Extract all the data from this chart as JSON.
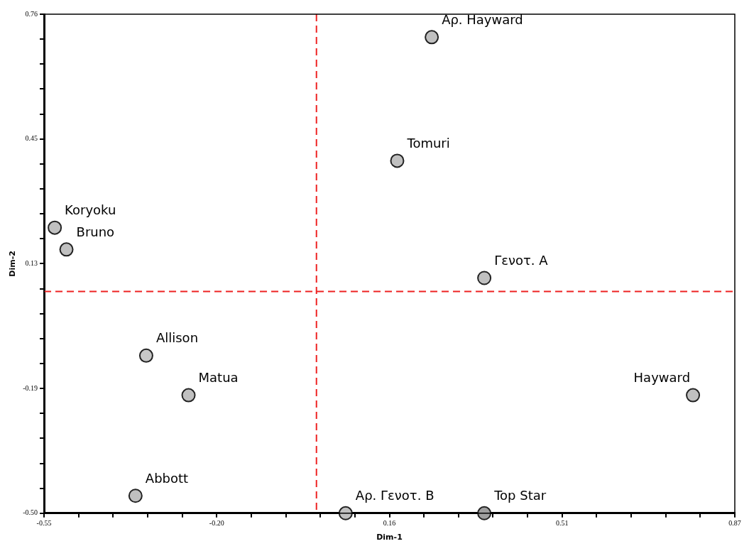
{
  "chart_data": {
    "type": "scatter",
    "xlabel": "Dim-1",
    "ylabel": "Dim-2",
    "x": [
      0.247,
      0.176,
      -0.528,
      -0.504,
      0.355,
      -0.34,
      -0.253,
      0.784,
      -0.362,
      0.07,
      0.355
    ],
    "values": [
      0.702,
      0.39,
      0.221,
      0.166,
      0.094,
      -0.102,
      -0.202,
      -0.202,
      -0.456,
      -0.5,
      -0.5
    ],
    "colors": [
      "#c0c0c0",
      "#c0c0c0",
      "#c0c0c0",
      "#c0c0c0",
      "#c0c0c0",
      "#c8c8c8",
      "#c0c0c0",
      "#c0c0c0",
      "#c0c0c0",
      "#c0c0c0",
      "#a0a0a0"
    ],
    "marker": "circle",
    "grid": false,
    "legend": false,
    "xlim": [
      -0.55,
      0.87
    ],
    "ylim": [
      -0.5,
      0.76
    ],
    "xticks": [
      {
        "value": -0.55,
        "label": "-0.55"
      },
      {
        "value": -0.479,
        "label": null
      },
      {
        "value": -0.408,
        "label": null
      },
      {
        "value": -0.337,
        "label": null
      },
      {
        "value": -0.266,
        "label": null
      },
      {
        "value": -0.195,
        "label": "-0.20"
      },
      {
        "value": -0.124,
        "label": null
      },
      {
        "value": -0.053,
        "label": null
      },
      {
        "value": 0.018,
        "label": null
      },
      {
        "value": 0.089,
        "label": null
      },
      {
        "value": 0.16,
        "label": "0.16"
      },
      {
        "value": 0.231,
        "label": null
      },
      {
        "value": 0.302,
        "label": null
      },
      {
        "value": 0.373,
        "label": null
      },
      {
        "value": 0.444,
        "label": null
      },
      {
        "value": 0.515,
        "label": "0.51"
      },
      {
        "value": 0.586,
        "label": null
      },
      {
        "value": 0.657,
        "label": null
      },
      {
        "value": 0.728,
        "label": null
      },
      {
        "value": 0.799,
        "label": null
      },
      {
        "value": 0.87,
        "label": "0.87"
      }
    ],
    "yticks": [
      {
        "value": -0.5,
        "label": "-0.50"
      },
      {
        "value": -0.437,
        "label": null
      },
      {
        "value": -0.374,
        "label": null
      },
      {
        "value": -0.311,
        "label": null
      },
      {
        "value": -0.248,
        "label": null
      },
      {
        "value": -0.185,
        "label": "-0.19"
      },
      {
        "value": -0.122,
        "label": null
      },
      {
        "value": -0.059,
        "label": null
      },
      {
        "value": 0.004,
        "label": null
      },
      {
        "value": 0.067,
        "label": null
      },
      {
        "value": 0.13,
        "label": "0.13"
      },
      {
        "value": 0.193,
        "label": null
      },
      {
        "value": 0.256,
        "label": null
      },
      {
        "value": 0.319,
        "label": null
      },
      {
        "value": 0.382,
        "label": null
      },
      {
        "value": 0.445,
        "label": "0.45"
      },
      {
        "value": 0.508,
        "label": null
      },
      {
        "value": 0.571,
        "label": null
      },
      {
        "value": 0.634,
        "label": null
      },
      {
        "value": 0.697,
        "label": null
      },
      {
        "value": 0.76,
        "label": "0.76"
      }
    ],
    "ref_lines": [
      {
        "axis": "x",
        "value": 0.01,
        "color": "#ee2222",
        "line_style": "dashed"
      },
      {
        "axis": "y",
        "value": 0.06,
        "color": "#ee2222",
        "line_style": "dashed"
      }
    ],
    "annotations": [
      {
        "text": "Αρ. Hayward",
        "x": 0.247,
        "y": 0.702
      },
      {
        "text": "Tomuri",
        "x": 0.176,
        "y": 0.39
      },
      {
        "text": "Koryoku",
        "x": -0.528,
        "y": 0.221
      },
      {
        "text": "Bruno",
        "x": -0.504,
        "y": 0.166
      },
      {
        "text": "Γενοτ. Α",
        "x": 0.355,
        "y": 0.094
      },
      {
        "text": "Allison",
        "x": -0.34,
        "y": -0.102
      },
      {
        "text": "Matua",
        "x": -0.253,
        "y": -0.202
      },
      {
        "text": "Hayward",
        "x": 0.784,
        "y": -0.202
      },
      {
        "text": "Abbott",
        "x": -0.362,
        "y": -0.456
      },
      {
        "text": "Αρ. Γενοτ. Β",
        "x": 0.07,
        "y": -0.5
      },
      {
        "text": "Top Star",
        "x": 0.355,
        "y": -0.5
      }
    ]
  }
}
